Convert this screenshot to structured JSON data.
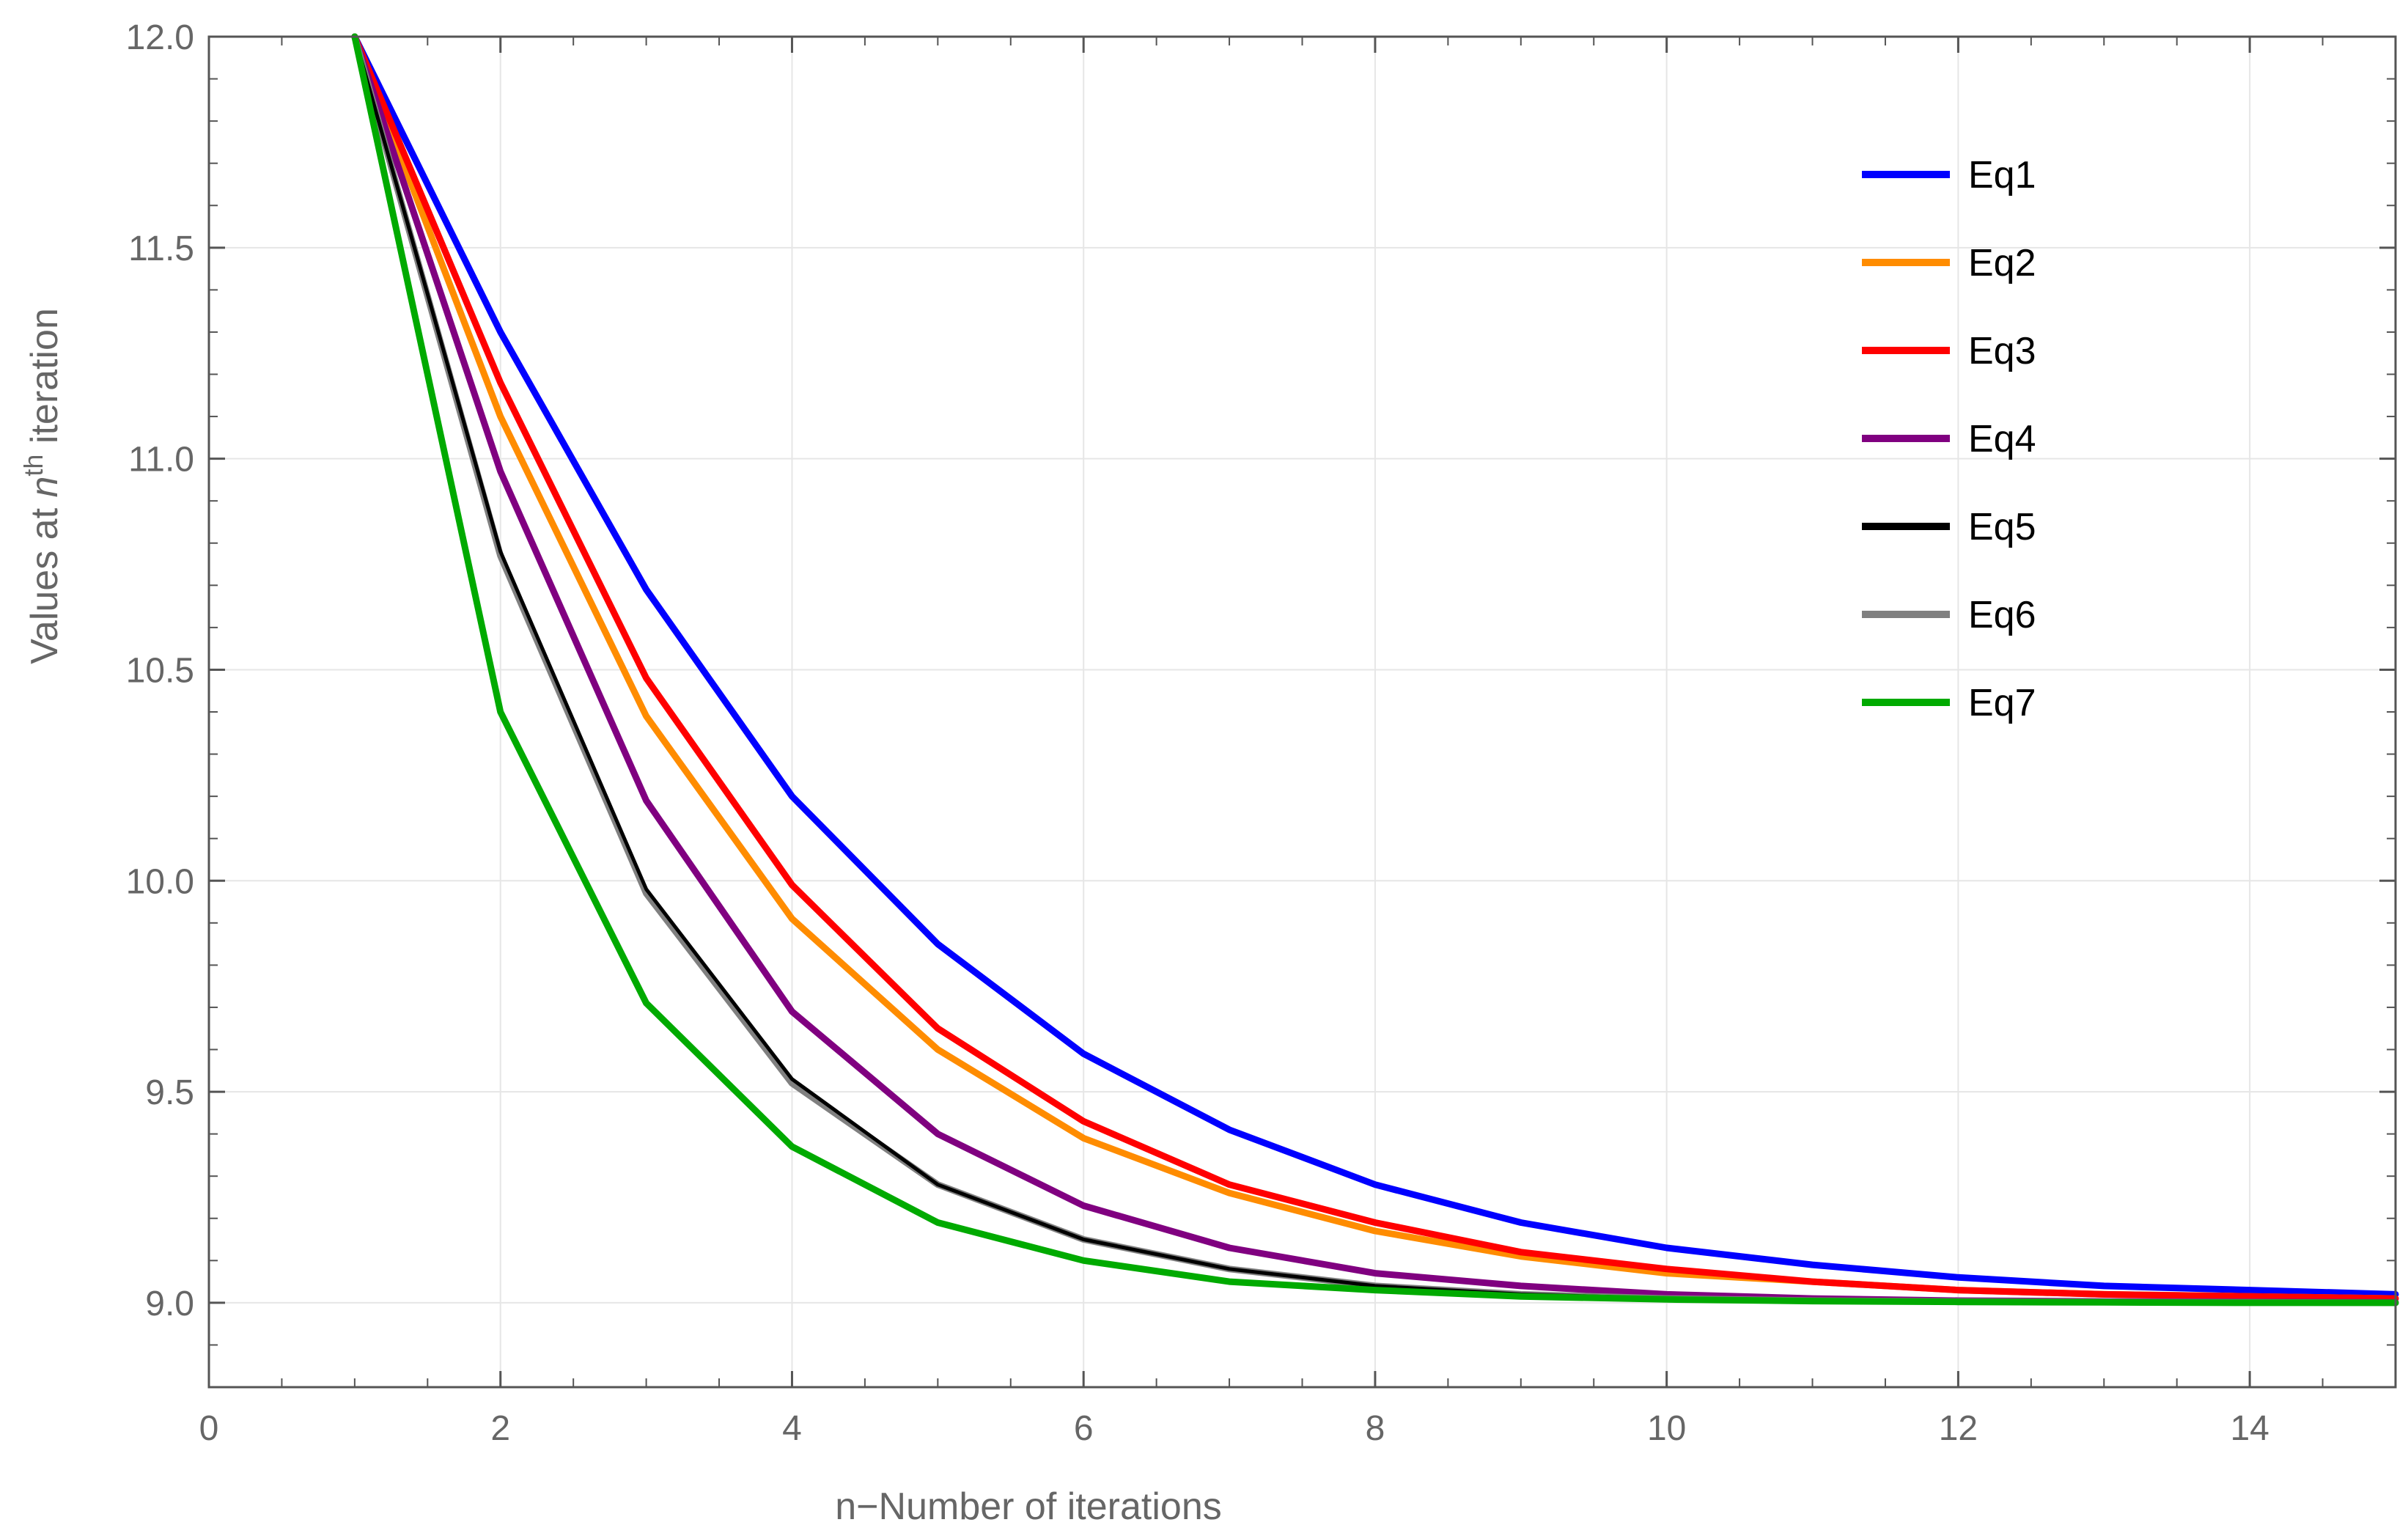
{
  "chart_data": {
    "type": "line",
    "xlabel": "n−Number of iterations",
    "ylabel": {
      "prefix": "Values at ",
      "var": "n",
      "sup": "th",
      "suffix": " iteration"
    },
    "xlim": [
      0,
      15
    ],
    "ylim": [
      8.8,
      12.0
    ],
    "x_ticks": [
      0,
      2,
      4,
      6,
      8,
      10,
      12,
      14
    ],
    "y_ticks": [
      9.0,
      9.5,
      10.0,
      10.5,
      11.0,
      11.5,
      12.0
    ],
    "grid": true,
    "legend_position": "top-right",
    "x": [
      1,
      2,
      3,
      4,
      5,
      6,
      7,
      8,
      9,
      10,
      11,
      12,
      13,
      14,
      15
    ],
    "series": [
      {
        "name": "Eq1",
        "color": "#0000ff",
        "values": [
          12.0,
          11.3,
          10.69,
          10.2,
          9.85,
          9.59,
          9.41,
          9.28,
          9.19,
          9.13,
          9.09,
          9.06,
          9.04,
          9.03,
          9.02
        ]
      },
      {
        "name": "Eq2",
        "color": "#ff8c00",
        "values": [
          12.0,
          11.1,
          10.39,
          9.91,
          9.6,
          9.39,
          9.26,
          9.17,
          9.11,
          9.07,
          9.05,
          9.03,
          9.02,
          9.015,
          9.01
        ]
      },
      {
        "name": "Eq3",
        "color": "#ff0000",
        "values": [
          12.0,
          11.18,
          10.48,
          9.99,
          9.65,
          9.43,
          9.28,
          9.19,
          9.12,
          9.08,
          9.05,
          9.03,
          9.02,
          9.015,
          9.01
        ]
      },
      {
        "name": "Eq4",
        "color": "#800080",
        "values": [
          12.0,
          10.97,
          10.19,
          9.69,
          9.4,
          9.23,
          9.13,
          9.07,
          9.04,
          9.02,
          9.01,
          9.005,
          9.003,
          9.002,
          9.001
        ]
      },
      {
        "name": "Eq5",
        "color": "#000000",
        "values": [
          12.0,
          10.78,
          9.98,
          9.53,
          9.28,
          9.15,
          9.08,
          9.04,
          9.02,
          9.01,
          9.005,
          9.003,
          9.002,
          9.001,
          9.0
        ]
      },
      {
        "name": "Eq6",
        "color": "#808080",
        "values": [
          12.0,
          10.77,
          9.97,
          9.52,
          9.28,
          9.15,
          9.08,
          9.04,
          9.02,
          9.01,
          9.005,
          9.003,
          9.002,
          9.001,
          9.0
        ]
      },
      {
        "name": "Eq7",
        "color": "#00aa00",
        "values": [
          12.0,
          10.4,
          9.71,
          9.37,
          9.19,
          9.1,
          9.05,
          9.03,
          9.015,
          9.008,
          9.004,
          9.002,
          9.001,
          9.0,
          9.0
        ]
      }
    ]
  }
}
